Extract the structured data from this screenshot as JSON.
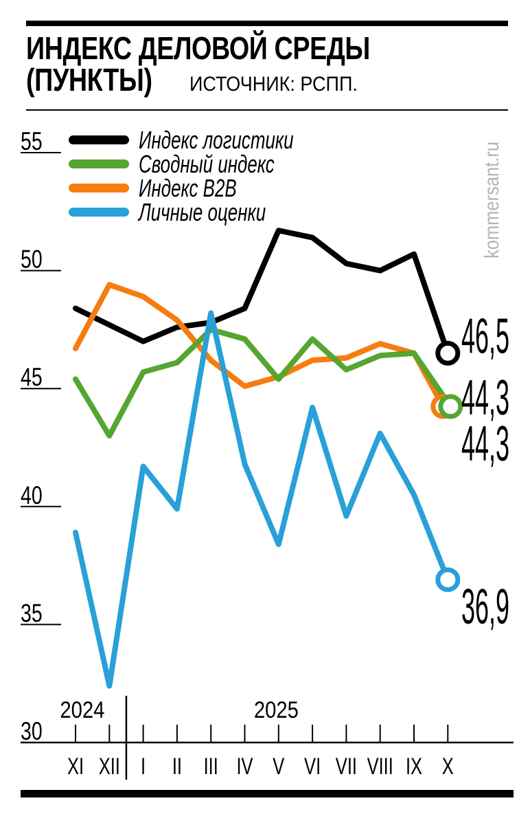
{
  "header": {
    "title_line1": "ИНДЕКС ДЕЛОВОЙ СРЕДЫ",
    "title_line2": "(ПУНКТЫ)",
    "source": "ИСТОЧНИК: РСПП."
  },
  "watermark": "kommersant.ru",
  "chart_data": {
    "type": "line",
    "title": "ИНДЕКС ДЕЛОВОЙ СРЕДЫ (ПУНКТЫ)",
    "source": "РСПП",
    "xlabel": "",
    "ylabel": "",
    "categories": [
      "XI",
      "XII",
      "I",
      "II",
      "III",
      "IV",
      "V",
      "VI",
      "VII",
      "VIII",
      "IX",
      "X"
    ],
    "year_labels": [
      {
        "label": "2024",
        "center_month_index": 0.2
      },
      {
        "label": "2025",
        "center_month_index": 5.93
      }
    ],
    "separator_after_month": "XII",
    "y_ticks": [
      55,
      50,
      45,
      40,
      35,
      30
    ],
    "ylim": [
      30,
      56
    ],
    "grid": "left-ticks-only",
    "legend_position": "top-left",
    "marker": "open-circle-on-last-point",
    "series": [
      {
        "name": "Индекс логистики",
        "color": "#000000",
        "values": [
          48.4,
          47.7,
          47.0,
          47.6,
          47.8,
          48.4,
          51.7,
          51.4,
          50.3,
          50.0,
          50.7,
          46.5
        ],
        "end_label": "46,5",
        "end_value": 46.5
      },
      {
        "name": "Сводный индекс",
        "color": "#56a531",
        "values": [
          45.4,
          43.0,
          45.7,
          46.1,
          47.5,
          47.1,
          45.4,
          47.1,
          45.8,
          46.4,
          46.5,
          44.3
        ],
        "end_label": "44,3",
        "end_value": 44.3
      },
      {
        "name": "Индекс B2B",
        "color": "#f57d0f",
        "values": [
          46.7,
          49.4,
          48.9,
          47.9,
          46.2,
          45.1,
          45.5,
          46.2,
          46.3,
          46.9,
          46.5,
          44.3
        ],
        "end_label": "44,3",
        "end_value": 44.3
      },
      {
        "name": "Личные оценки",
        "color": "#29a0d8",
        "values": [
          38.9,
          32.4,
          41.7,
          39.9,
          48.2,
          41.8,
          38.4,
          44.2,
          39.6,
          43.1,
          40.5,
          36.9
        ],
        "end_label": "36,9",
        "end_value": 36.9
      }
    ]
  }
}
